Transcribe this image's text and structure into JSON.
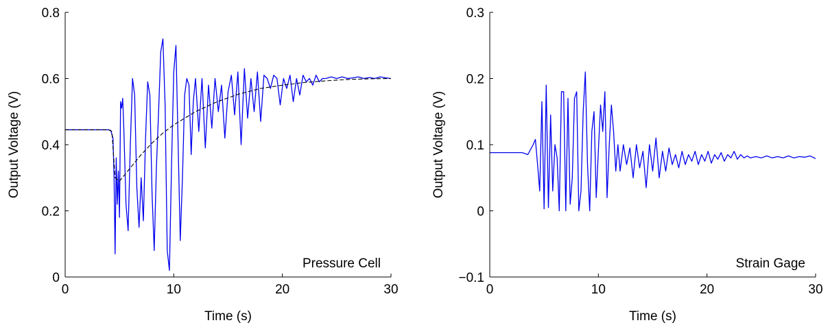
{
  "chart_data": [
    {
      "type": "line",
      "panel": "left",
      "title": "",
      "annotation": "Pressure Cell",
      "xlabel": "Time (s)",
      "ylabel": "Output Voltage (V)",
      "xlim": [
        0,
        30
      ],
      "ylim": [
        0,
        0.8
      ],
      "xticks": [
        0,
        10,
        20,
        30
      ],
      "yticks": [
        0,
        0.2,
        0.4,
        0.6,
        0.8
      ],
      "xtick_labels": [
        "0",
        "10",
        "20",
        "30"
      ],
      "ytick_labels": [
        "0",
        "0.2",
        "0.4",
        "0.6",
        "0.8"
      ],
      "grid": false,
      "series": [
        {
          "color": "#0000ee",
          "style": "solid",
          "x": [
            0,
            1,
            2,
            3,
            4,
            4.2,
            4.4,
            4.5,
            4.6,
            4.7,
            4.8,
            4.9,
            5.0,
            5.1,
            5.2,
            5.3,
            5.4,
            5.6,
            5.8,
            6.0,
            6.2,
            6.4,
            6.6,
            6.8,
            7.0,
            7.2,
            7.4,
            7.6,
            7.8,
            8.0,
            8.2,
            8.4,
            8.6,
            8.8,
            9.0,
            9.2,
            9.4,
            9.6,
            9.8,
            10.0,
            10.2,
            10.4,
            10.6,
            10.8,
            11.0,
            11.2,
            11.4,
            11.6,
            11.8,
            12.0,
            12.3,
            12.6,
            12.9,
            13.2,
            13.5,
            13.8,
            14.1,
            14.4,
            14.7,
            15.0,
            15.3,
            15.6,
            15.9,
            16.2,
            16.5,
            16.8,
            17.1,
            17.4,
            17.7,
            18.0,
            18.3,
            18.6,
            18.9,
            19.2,
            19.5,
            19.8,
            20.1,
            20.4,
            20.7,
            21.0,
            21.3,
            21.6,
            21.9,
            22.2,
            22.5,
            22.8,
            23.1,
            23.4,
            23.7,
            24.0,
            24.5,
            25.0,
            25.5,
            26.0,
            26.5,
            27.0,
            27.5,
            28.0,
            28.5,
            29.0,
            29.5,
            30.0
          ],
          "y": [
            0.445,
            0.445,
            0.445,
            0.445,
            0.445,
            0.443,
            0.42,
            0.3,
            0.07,
            0.36,
            0.22,
            0.32,
            0.18,
            0.53,
            0.51,
            0.54,
            0.45,
            0.22,
            0.14,
            0.4,
            0.6,
            0.55,
            0.27,
            0.15,
            0.3,
            0.17,
            0.42,
            0.59,
            0.55,
            0.25,
            0.08,
            0.33,
            0.5,
            0.68,
            0.72,
            0.52,
            0.08,
            0.02,
            0.35,
            0.62,
            0.7,
            0.4,
            0.11,
            0.3,
            0.55,
            0.6,
            0.58,
            0.37,
            0.53,
            0.6,
            0.44,
            0.6,
            0.39,
            0.58,
            0.45,
            0.6,
            0.5,
            0.58,
            0.42,
            0.56,
            0.61,
            0.49,
            0.62,
            0.4,
            0.63,
            0.48,
            0.6,
            0.5,
            0.62,
            0.47,
            0.61,
            0.6,
            0.57,
            0.61,
            0.6,
            0.52,
            0.6,
            0.57,
            0.61,
            0.53,
            0.6,
            0.55,
            0.61,
            0.59,
            0.6,
            0.58,
            0.61,
            0.59,
            0.6,
            0.6,
            0.605,
            0.6,
            0.605,
            0.6,
            0.602,
            0.605,
            0.6,
            0.603,
            0.6,
            0.605,
            0.602,
            0.6
          ]
        },
        {
          "color": "#000000",
          "style": "dashed",
          "x": [
            0,
            4.0,
            4.3,
            4.6,
            5,
            6,
            7,
            8,
            9,
            10,
            12,
            14,
            16,
            18,
            20,
            22,
            24,
            26,
            28,
            30
          ],
          "y": [
            0.445,
            0.445,
            0.44,
            0.3,
            0.29,
            0.33,
            0.37,
            0.405,
            0.435,
            0.46,
            0.5,
            0.53,
            0.553,
            0.57,
            0.58,
            0.588,
            0.593,
            0.597,
            0.599,
            0.6
          ]
        }
      ]
    },
    {
      "type": "line",
      "panel": "right",
      "title": "",
      "annotation": "Strain Gage",
      "xlabel": "Time (s)",
      "ylabel": "Output Voltage (V)",
      "xlim": [
        0,
        30
      ],
      "ylim": [
        -0.1,
        0.3
      ],
      "xticks": [
        0,
        10,
        20,
        30
      ],
      "yticks": [
        -0.1,
        0,
        0.1,
        0.2,
        0.3
      ],
      "xtick_labels": [
        "0",
        "10",
        "20",
        "30"
      ],
      "ytick_labels": [
        "−0.1",
        "0",
        "0.1",
        "0.2",
        "0.3"
      ],
      "grid": false,
      "series": [
        {
          "color": "#0000ee",
          "style": "solid",
          "x": [
            0,
            1,
            2,
            3,
            3.5,
            4.0,
            4.2,
            4.4,
            4.6,
            4.8,
            5.0,
            5.2,
            5.4,
            5.6,
            5.8,
            6.0,
            6.2,
            6.4,
            6.6,
            6.8,
            7.0,
            7.2,
            7.4,
            7.6,
            7.8,
            8.0,
            8.2,
            8.4,
            8.6,
            8.8,
            9.0,
            9.2,
            9.4,
            9.6,
            9.8,
            10.0,
            10.2,
            10.4,
            10.6,
            10.8,
            11.0,
            11.2,
            11.4,
            11.6,
            11.8,
            12.0,
            12.3,
            12.6,
            12.9,
            13.2,
            13.5,
            13.8,
            14.1,
            14.4,
            14.7,
            15.0,
            15.3,
            15.6,
            15.9,
            16.2,
            16.5,
            16.8,
            17.1,
            17.4,
            17.7,
            18.0,
            18.3,
            18.6,
            18.9,
            19.2,
            19.5,
            19.8,
            20.1,
            20.4,
            20.7,
            21.0,
            21.3,
            21.6,
            21.9,
            22.2,
            22.5,
            22.8,
            23.1,
            23.4,
            23.7,
            24.0,
            24.5,
            25.0,
            25.5,
            26.0,
            26.5,
            27.0,
            27.5,
            28.0,
            28.5,
            29.0,
            29.5,
            30.0
          ],
          "y": [
            0.088,
            0.088,
            0.088,
            0.088,
            0.085,
            0.1,
            0.108,
            0.07,
            0.03,
            0.165,
            0.003,
            0.19,
            0.005,
            0.145,
            0.03,
            0.1,
            0.08,
            0.0,
            0.18,
            0.18,
            0.0,
            0.17,
            0.01,
            0.05,
            0.17,
            0.18,
            0.0,
            0.03,
            0.15,
            0.21,
            0.07,
            0.0,
            0.12,
            0.15,
            0.02,
            0.09,
            0.16,
            0.12,
            0.18,
            0.02,
            0.1,
            0.16,
            0.12,
            0.06,
            0.1,
            0.06,
            0.1,
            0.07,
            0.095,
            0.05,
            0.1,
            0.065,
            0.09,
            0.035,
            0.1,
            0.06,
            0.11,
            0.05,
            0.09,
            0.06,
            0.095,
            0.07,
            0.085,
            0.065,
            0.09,
            0.07,
            0.085,
            0.075,
            0.09,
            0.07,
            0.085,
            0.075,
            0.09,
            0.072,
            0.085,
            0.078,
            0.088,
            0.075,
            0.085,
            0.08,
            0.09,
            0.078,
            0.085,
            0.08,
            0.083,
            0.08,
            0.082,
            0.08,
            0.083,
            0.08,
            0.082,
            0.08,
            0.083,
            0.08,
            0.082,
            0.081,
            0.083,
            0.079
          ]
        }
      ]
    }
  ]
}
